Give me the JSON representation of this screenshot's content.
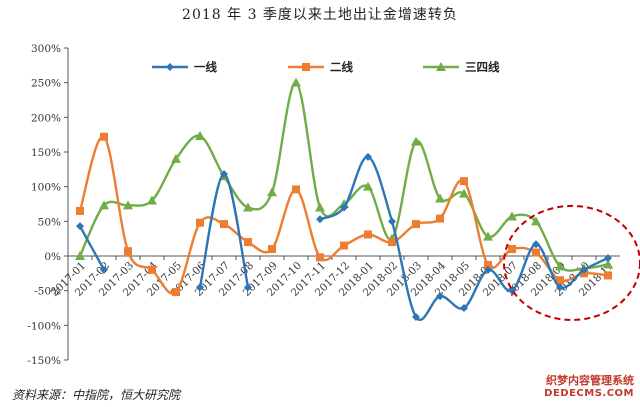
{
  "chart_data": {
    "type": "line",
    "title": "2018 年 3 季度以来土地出让金增速转负",
    "categories": [
      "2017-01",
      "2017-02",
      "2017-03",
      "2017-04",
      "2017-05",
      "2017-06",
      "2017-07",
      "2017-08",
      "2017-09",
      "2017-10",
      "2017-11",
      "2017-12",
      "2018-01",
      "2018-02",
      "2018-03",
      "2018-04",
      "2018-05",
      "2018-06",
      "2018-07",
      "2018-08",
      "2018-09",
      "2018-10",
      "2018-11"
    ],
    "x_tick_labels": [
      "2017-01",
      "2017-02",
      "2017-03",
      "2017-04",
      "2017-05",
      "2017-06",
      "2017-07",
      "2017-08",
      "2017-09",
      "2017-10",
      "2017-11",
      "2017-12",
      "2018-01",
      "2018-02",
      "2018-03",
      "2018-04",
      "2018-05",
      "2018-06",
      "2018-07",
      "2018-08",
      "2018-09",
      "2018-10",
      "2018-11"
    ],
    "y_tick_labels": [
      "-150%",
      "-100%",
      "-50%",
      "0%",
      "50%",
      "100%",
      "150%",
      "200%",
      "250%",
      "300%"
    ],
    "ylim": [
      -150,
      300
    ],
    "y_unit": "%",
    "grid": false,
    "legend_position": "top",
    "series": [
      {
        "name": "一线",
        "color": "#2E75B6",
        "marker": "diamond",
        "values": [
          43,
          -20,
          null,
          null,
          null,
          -45,
          118,
          -45,
          null,
          null,
          53,
          70,
          143,
          50,
          -88,
          -58,
          -75,
          -20,
          -50,
          17,
          -45,
          -20,
          -3
        ]
      },
      {
        "name": "二线",
        "color": "#ED7D31",
        "marker": "square",
        "values": [
          65,
          172,
          7,
          -20,
          -52,
          48,
          46,
          20,
          10,
          96,
          -2,
          15,
          31,
          20,
          46,
          54,
          108,
          -13,
          10,
          5,
          -35,
          -25,
          -28
        ]
      },
      {
        "name": "三四线",
        "color": "#70AD47",
        "marker": "triangle",
        "values": [
          0,
          73,
          73,
          80,
          140,
          173,
          115,
          70,
          92,
          250,
          70,
          75,
          100,
          25,
          165,
          83,
          90,
          28,
          57,
          50,
          -15,
          -18,
          -12
        ]
      }
    ],
    "annotation": {
      "type": "dashed-circle",
      "color": "#C00000",
      "around_categories": [
        "2018-08",
        "2018-11"
      ]
    }
  },
  "source": "资料来源：中指院，恒大研究院",
  "watermark": {
    "line1": "织梦内容管理系统",
    "line2": "DEDECMS.COM"
  }
}
